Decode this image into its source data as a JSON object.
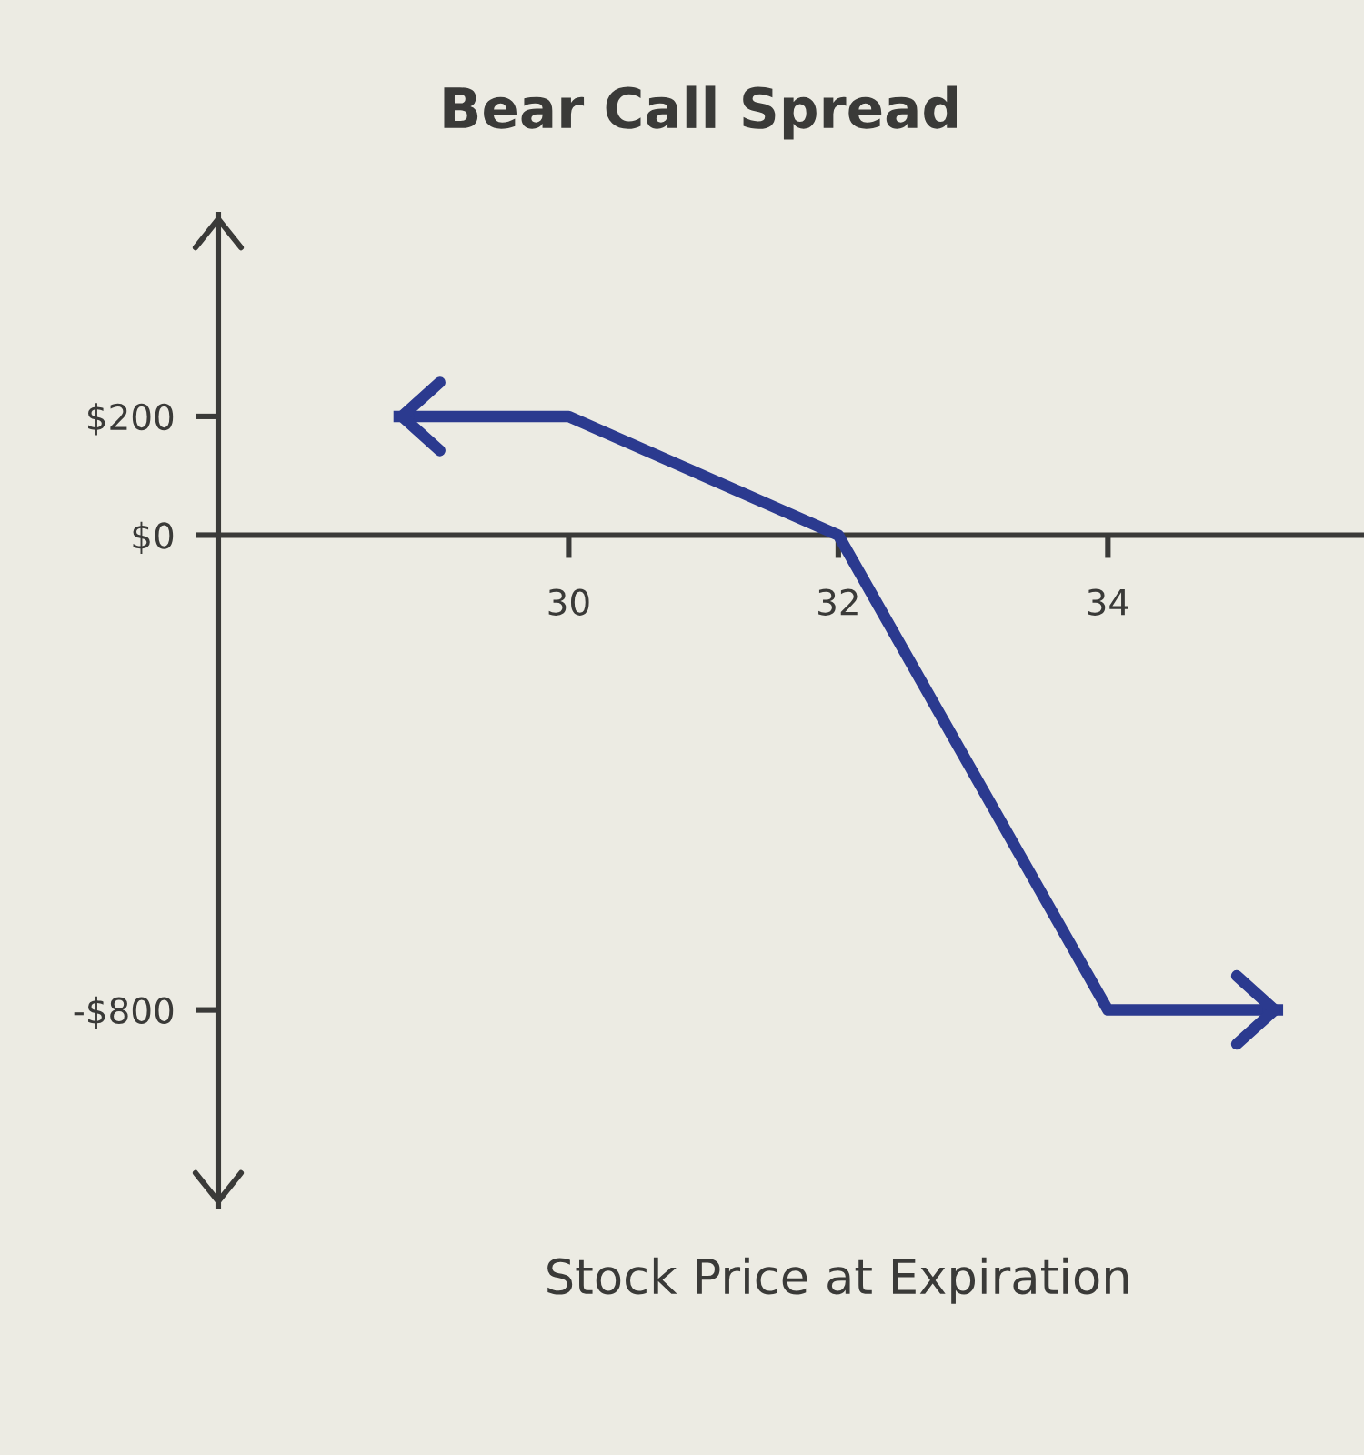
{
  "chart_data": {
    "type": "line",
    "title": "Bear Call Spread",
    "xlabel": "Stock Price at Expiration",
    "x": [
      28.7,
      30,
      32,
      34,
      35.3
    ],
    "series": [
      {
        "color": "#2b3a8f",
        "values": [
          200,
          200,
          0,
          -800,
          -800
        ]
      }
    ],
    "xlim": [
      27.4,
      35.9
    ],
    "xticks": [
      30,
      32,
      34
    ],
    "ylim": [
      -1130,
      540
    ],
    "yticks": [
      {
        "value": 200,
        "label": "$200"
      },
      {
        "value": 0,
        "label": "$0"
      },
      {
        "value": -800,
        "label": "-$800"
      }
    ],
    "grid": false,
    "marker": "none",
    "line_style": "solid"
  }
}
